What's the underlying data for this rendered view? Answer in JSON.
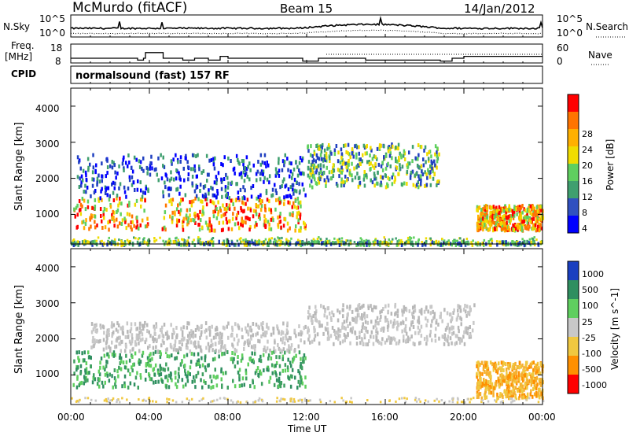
{
  "header": {
    "station": "McMurdo (fitACF)",
    "beam": "Beam 15",
    "date": "14/Jan/2012"
  },
  "noise_panel": {
    "left_label": "N.Sky",
    "right_label": "N.Search",
    "left_ticks": [
      "10^5",
      "10^0"
    ],
    "right_ticks": [
      "10^5",
      "10^0"
    ]
  },
  "freq_panel": {
    "left_label_1": "Freq.",
    "left_label_2": "[MHz]",
    "right_label": "Nave",
    "left_ticks": [
      "18",
      "8"
    ],
    "right_ticks": [
      "60",
      "0"
    ],
    "freq_steps": [
      {
        "t": 0,
        "v": 10.5
      },
      {
        "t": 3.4,
        "v": 9.5
      },
      {
        "t": 3.7,
        "v": 10.5
      },
      {
        "t": 3.8,
        "v": 13.5
      },
      {
        "t": 4.7,
        "v": 10.5
      },
      {
        "t": 5.7,
        "v": 9.5
      },
      {
        "t": 6.3,
        "v": 10.5
      },
      {
        "t": 7.0,
        "v": 9.5
      },
      {
        "t": 7.6,
        "v": 11.5
      },
      {
        "t": 8.0,
        "v": 10.5
      },
      {
        "t": 11.8,
        "v": 9.0
      },
      {
        "t": 12.6,
        "v": 10.5
      },
      {
        "t": 15.0,
        "v": 9.5
      },
      {
        "t": 18.8,
        "v": 9.0
      },
      {
        "t": 19.4,
        "v": 10.5
      },
      {
        "t": 20.0,
        "v": 11.5
      },
      {
        "t": 24.0,
        "v": 11.5
      }
    ]
  },
  "cpid": {
    "label": "CPID",
    "text": "normalsound (fast) 157 RF"
  },
  "chart_data": [
    {
      "type": "heatmap",
      "title": "",
      "xlabel": "Time UT",
      "ylabel": "Slant Range [km]",
      "xlim": [
        0,
        24
      ],
      "ylim": [
        180,
        4500
      ],
      "x_ticks": [
        "00:00",
        "04:00",
        "08:00",
        "12:00",
        "16:00",
        "20:00",
        "00:00"
      ],
      "y_ticks": [
        "1000",
        "2000",
        "3000",
        "4000"
      ],
      "colorbar": {
        "label": "Power [dB]",
        "ticks": [
          "28",
          "24",
          "20",
          "16",
          "12",
          "8",
          "4"
        ],
        "colors": [
          "#ff0000",
          "#ff7400",
          "#ffb000",
          "#f0dc00",
          "#5fcf5f",
          "#3f9f6f",
          "#3050c0",
          "#0000ff"
        ]
      },
      "series": [
        {
          "range_km": [
            200,
            300
          ],
          "x": [
            0,
            24
          ],
          "level": "12"
        },
        {
          "range_km": [
            600,
            1500
          ],
          "x": [
            0.1,
            11.9
          ],
          "level": "20"
        },
        {
          "range_km": [
            1500,
            2700
          ],
          "x": [
            0.3,
            11.9
          ],
          "level": "8"
        },
        {
          "range_km": [
            1800,
            3000
          ],
          "x": [
            12.0,
            18.7
          ],
          "level": "12"
        },
        {
          "range_km": [
            600,
            1300
          ],
          "x": [
            20.6,
            24.0
          ],
          "level": "20"
        }
      ]
    },
    {
      "type": "heatmap",
      "title": "",
      "xlabel": "Time UT",
      "ylabel": "Slant Range [km]",
      "xlim": [
        0,
        24
      ],
      "ylim": [
        180,
        4500
      ],
      "x_ticks": [
        "00:00",
        "04:00",
        "08:00",
        "12:00",
        "16:00",
        "20:00",
        "00:00"
      ],
      "y_ticks": [
        "1000",
        "2000",
        "3000",
        "4000"
      ],
      "colorbar": {
        "label": "Velocity [m s^-1]",
        "ticks": [
          "1000",
          "500",
          "100",
          "25",
          "-25",
          "-100",
          "-500",
          "-1000"
        ],
        "colors": [
          "#1a3fc0",
          "#2f8f60",
          "#5fcf5f",
          "#c8c8c8",
          "#f0c840",
          "#ff9000",
          "#ff0000"
        ]
      },
      "series": [
        {
          "range_km": [
            700,
            1700
          ],
          "x": [
            0.1,
            11.9
          ],
          "level": "100"
        },
        {
          "range_km": [
            1700,
            2500
          ],
          "x": [
            1.0,
            11.9
          ],
          "level": "25"
        },
        {
          "range_km": [
            1900,
            3000
          ],
          "x": [
            12.0,
            20.5
          ],
          "level": "25"
        },
        {
          "range_km": [
            400,
            1400
          ],
          "x": [
            20.6,
            24.0
          ],
          "level": "-100"
        }
      ]
    }
  ]
}
